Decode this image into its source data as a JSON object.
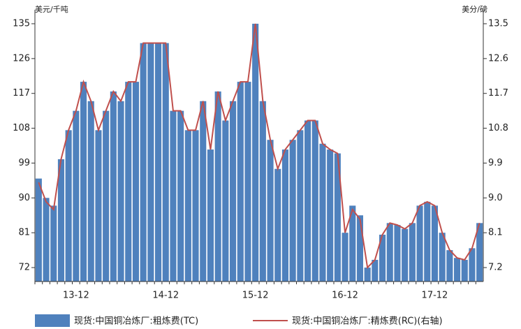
{
  "chart_data": {
    "type": "bar-line",
    "y_unit": "美元/千吨",
    "y2_unit": "美分/磅",
    "categories": [
      null,
      null,
      null,
      null,
      null,
      "13-12",
      null,
      null,
      null,
      null,
      null,
      null,
      null,
      null,
      null,
      null,
      null,
      "14-12",
      null,
      null,
      null,
      null,
      null,
      null,
      null,
      null,
      null,
      null,
      null,
      "15-12",
      null,
      null,
      null,
      null,
      null,
      null,
      null,
      null,
      null,
      null,
      null,
      "16-12",
      null,
      null,
      null,
      null,
      null,
      null,
      null,
      null,
      null,
      null,
      null,
      "17-12",
      null,
      null,
      null,
      null,
      null,
      null
    ],
    "series": [
      {
        "name": "现货:中国铜冶炼厂:粗炼费(TC)",
        "color": "#4f81bd",
        "kind": "bar",
        "values": [
          95,
          90,
          88,
          100,
          107.5,
          112.5,
          120,
          115,
          107.5,
          112.5,
          117.5,
          115,
          120,
          120,
          130,
          130,
          130,
          130,
          112.5,
          112.5,
          107.5,
          107.5,
          115,
          102.5,
          117.5,
          110,
          115,
          120,
          120,
          135,
          115,
          105,
          97.5,
          102.5,
          105,
          107.5,
          110,
          110,
          104,
          102.5,
          101.5,
          81,
          88,
          85.5,
          72,
          74,
          80.5,
          83.5,
          83,
          82,
          83.5,
          88,
          89,
          88,
          81,
          76.5,
          74.5,
          74,
          77,
          83.5
        ]
      },
      {
        "name": "现货:中国铜冶炼厂:精炼费(RC)(右轴)",
        "color": "#c0504d",
        "kind": "line",
        "axis": "y2",
        "values": [
          9.4,
          8.9,
          8.7,
          10,
          10.75,
          11.25,
          12,
          11.5,
          10.75,
          11.25,
          11.75,
          11.5,
          12,
          12,
          13,
          13,
          13,
          13,
          11.25,
          11.25,
          10.75,
          10.75,
          11.5,
          10.25,
          11.75,
          11,
          11.5,
          12,
          12,
          13.5,
          11.5,
          10.5,
          9.75,
          10.25,
          10.5,
          10.75,
          11,
          11,
          10.4,
          10.25,
          10.15,
          8.1,
          8.7,
          8.45,
          7.2,
          7.4,
          8.05,
          8.35,
          8.3,
          8.2,
          8.35,
          8.8,
          8.9,
          8.8,
          8.1,
          7.65,
          7.45,
          7.4,
          7.7,
          8.35
        ]
      }
    ],
    "ylim": [
      68.4,
      136.8
    ],
    "yticks": [
      72,
      81,
      90,
      99,
      108,
      117,
      126,
      135
    ],
    "y2lim": [
      6.84,
      13.68
    ],
    "y2ticks": [
      7.2,
      8.1,
      {
        "value": 9,
        "label": "9.0"
      },
      9.9,
      10.8,
      11.7,
      12.6,
      13.5
    ]
  }
}
